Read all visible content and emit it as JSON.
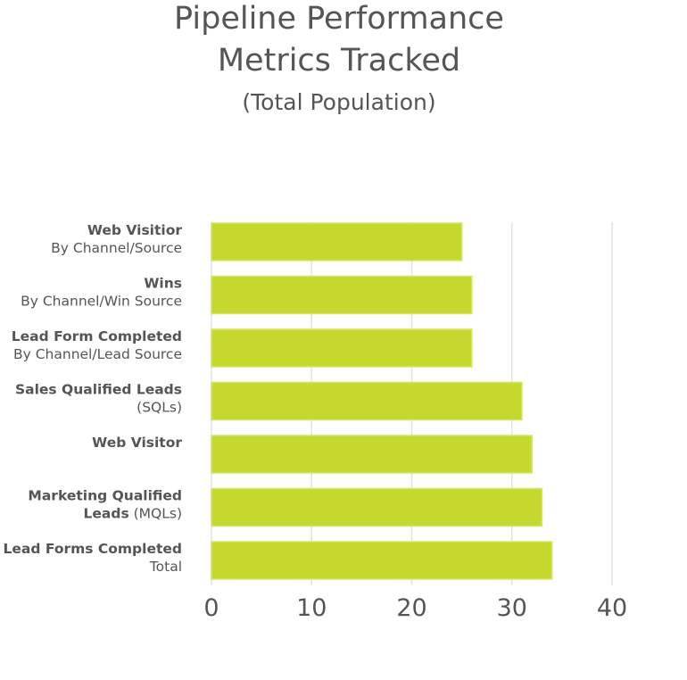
{
  "chart_data": {
    "type": "hbar",
    "title": [
      "Pipeline Performance",
      "Metrics Tracked"
    ],
    "subtitle": "(Total Population)",
    "categories": [
      {
        "lines": [
          [
            {
              "text": "Web Visitior",
              "bold": true
            }
          ],
          [
            {
              "text": "By Channel/Source",
              "bold": false
            }
          ]
        ]
      },
      {
        "lines": [
          [
            {
              "text": "Wins",
              "bold": true
            }
          ],
          [
            {
              "text": "By Channel/Win Source",
              "bold": false
            }
          ]
        ]
      },
      {
        "lines": [
          [
            {
              "text": "Lead Form Completed",
              "bold": true
            }
          ],
          [
            {
              "text": "By Channel/Lead Source",
              "bold": false
            }
          ]
        ]
      },
      {
        "lines": [
          [
            {
              "text": "Sales Qualified Leads",
              "bold": true
            }
          ],
          [
            {
              "text": "(SQLs)",
              "bold": false
            }
          ]
        ]
      },
      {
        "lines": [
          [
            {
              "text": "Web Visitor",
              "bold": true
            }
          ]
        ]
      },
      {
        "lines": [
          [
            {
              "text": "Marketing Qualified",
              "bold": true
            }
          ],
          [
            {
              "text": "Leads",
              "bold": true
            },
            {
              "text": " (MQLs)",
              "bold": false
            }
          ]
        ]
      },
      {
        "lines": [
          [
            {
              "text": "Lead Forms Completed",
              "bold": true
            }
          ],
          [
            {
              "text": "Total",
              "bold": false
            }
          ]
        ]
      }
    ],
    "values": [
      25,
      26,
      26,
      31,
      32,
      33,
      34
    ],
    "color": "#c4d82e",
    "xlim": [
      0,
      40
    ],
    "xticks": [
      0,
      10,
      20,
      30,
      40
    ],
    "grid": true
  }
}
